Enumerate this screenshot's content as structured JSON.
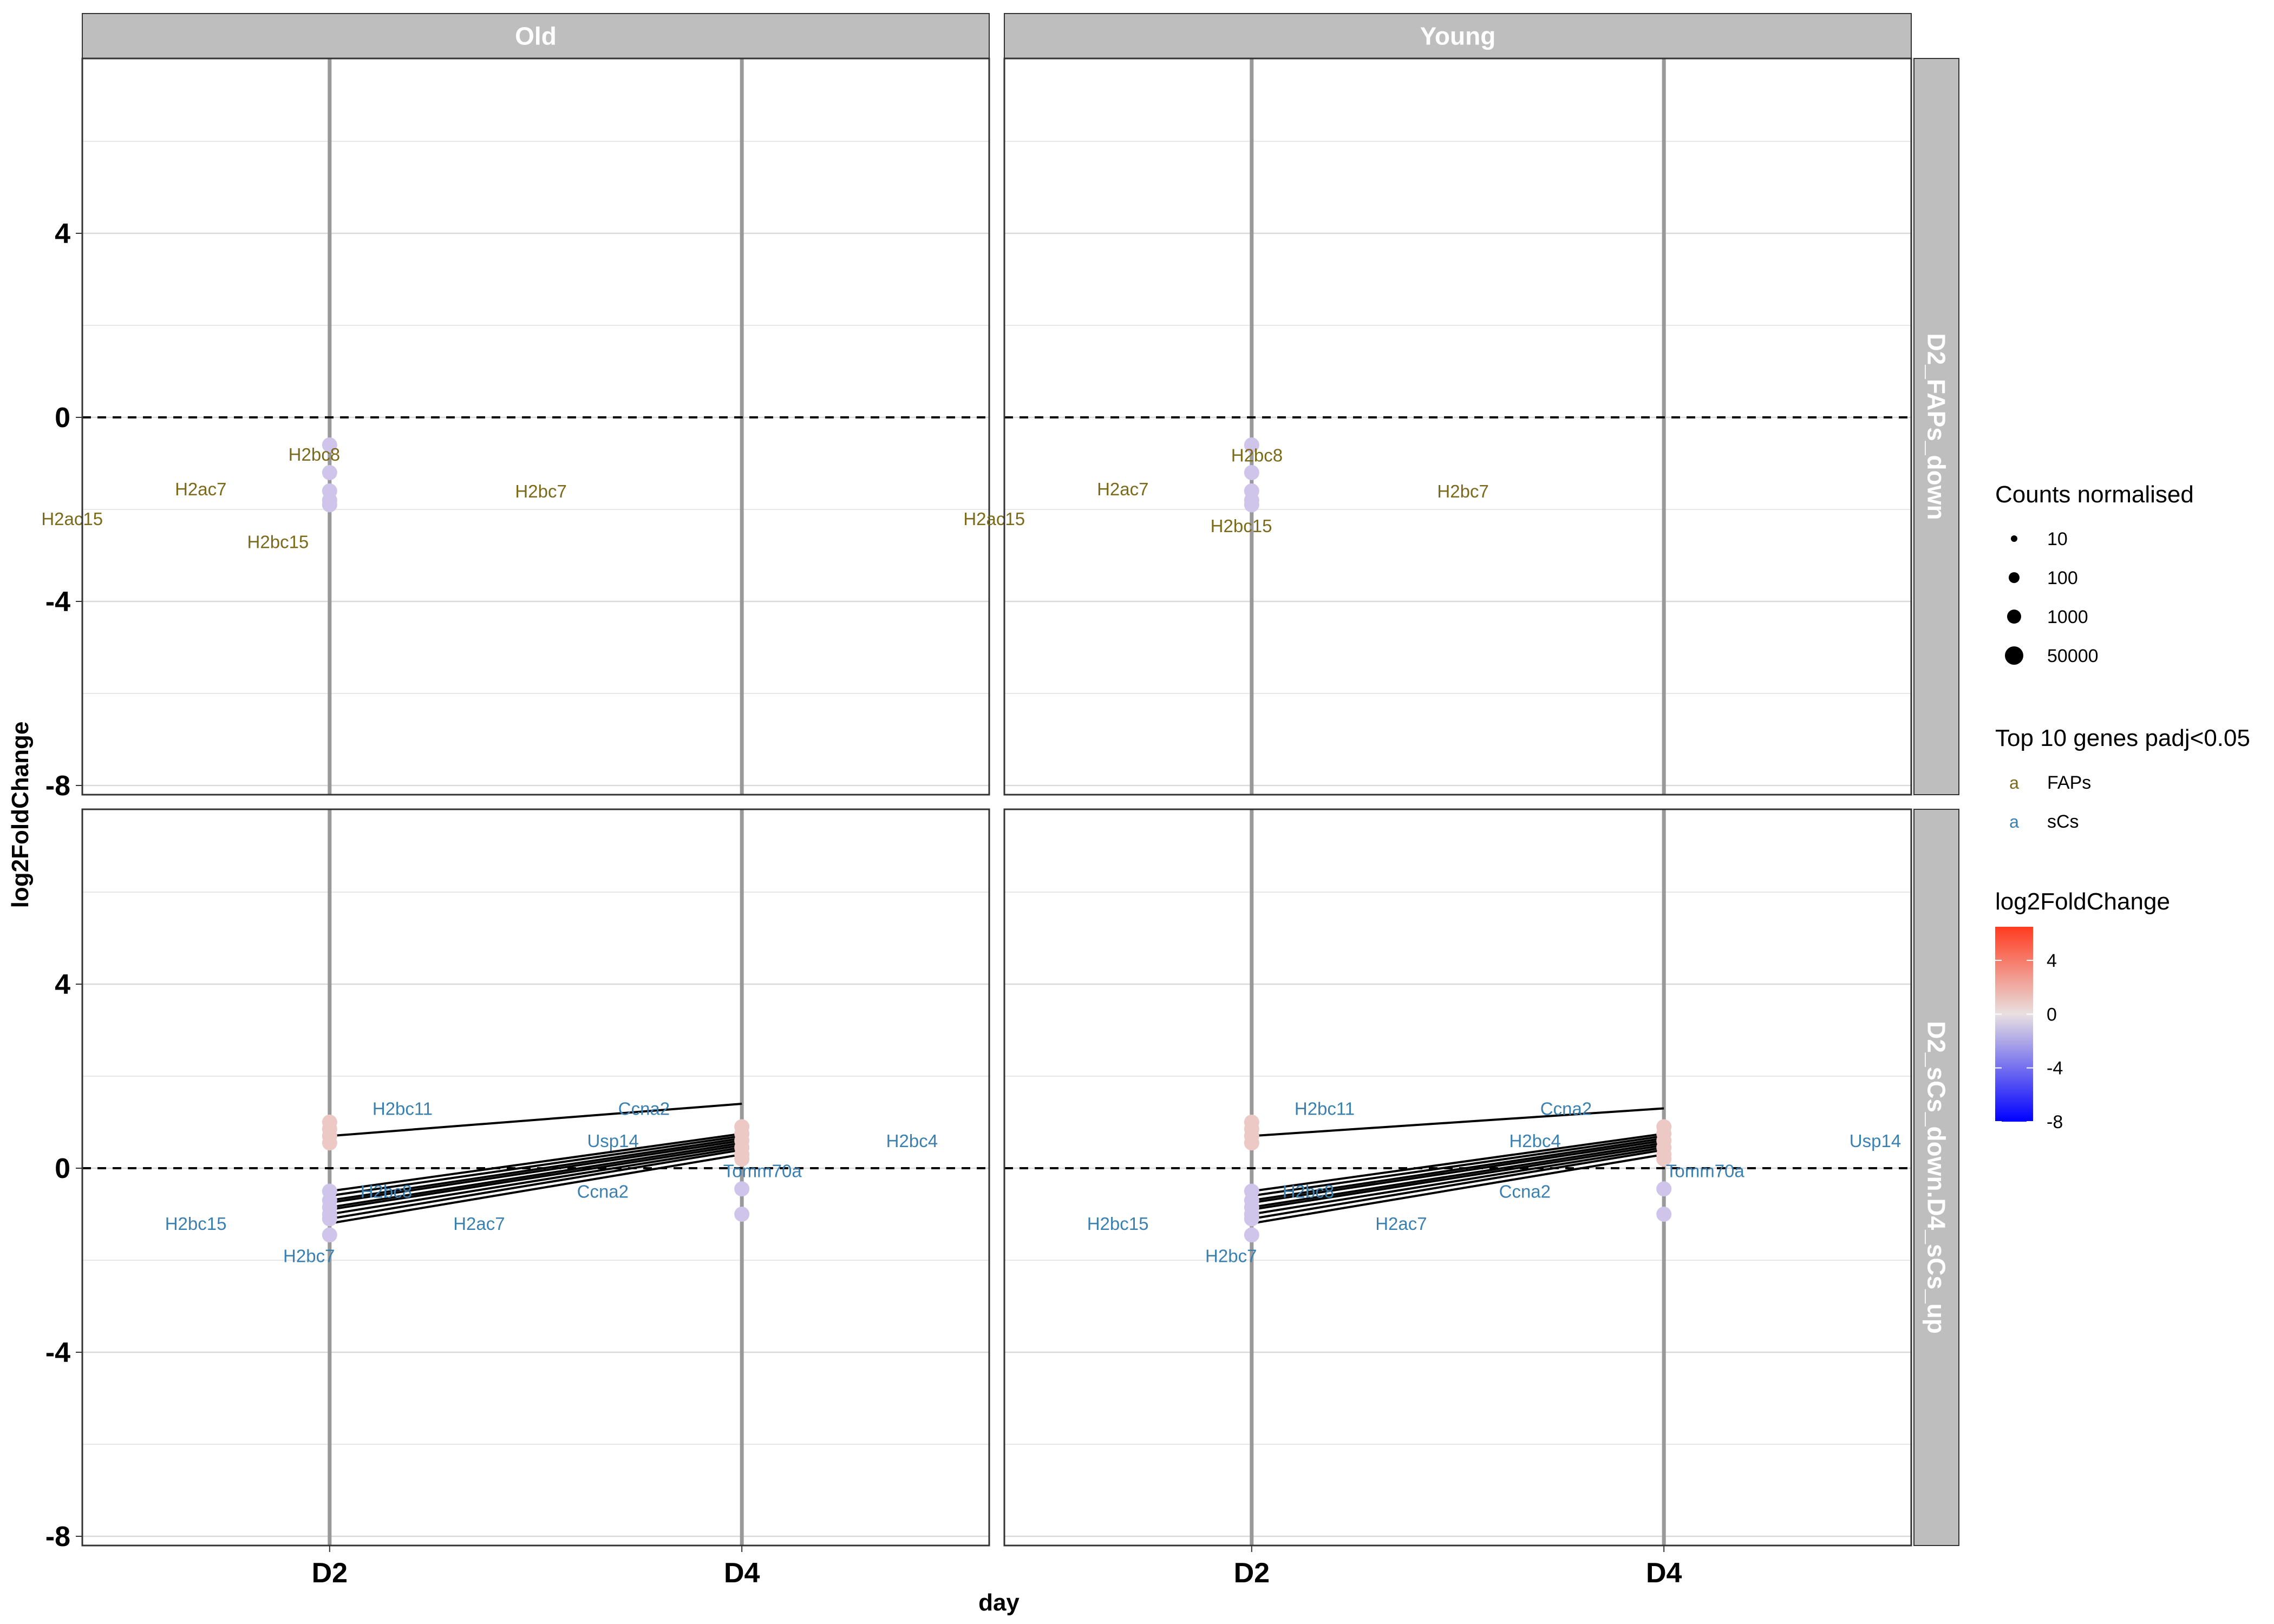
{
  "figure": {
    "xlabel": "day",
    "ylabel": "log2FoldChange",
    "col_strips": [
      "Old",
      "Young"
    ],
    "row_strips": [
      "D2_FAPs_down",
      "D2_sCs_down.D4_sCs_up"
    ]
  },
  "chart_data": {
    "type": "scatter",
    "x_categories": [
      "D2",
      "D4"
    ],
    "y_ticks": [
      4,
      0,
      -4,
      -8
    ],
    "ylim": [
      -8.2,
      7.8
    ],
    "grid": true,
    "zero_line": "dashed",
    "panels": [
      {
        "col": "Old",
        "row": "D2_FAPs_down",
        "points": [
          {
            "x": "D2",
            "y": -0.6
          },
          {
            "x": "D2",
            "y": -1.2
          },
          {
            "x": "D2",
            "y": -1.6
          },
          {
            "x": "D2",
            "y": -1.8
          },
          {
            "x": "D2",
            "y": -1.9
          }
        ],
        "lines": [],
        "labels": [
          {
            "text": "H2bc8",
            "x": "D2",
            "y": -0.8,
            "group": "FAPs",
            "anchor": "start",
            "dx": -0.1
          },
          {
            "text": "H2ac7",
            "x": "D2",
            "y": -1.55,
            "group": "FAPs",
            "anchor": "end",
            "dx": -0.25
          },
          {
            "text": "H2bc7",
            "x": "D2",
            "y": -1.6,
            "group": "FAPs",
            "anchor": "start",
            "dx": 0.45
          },
          {
            "text": "H2ac15",
            "x": "D2",
            "y": -2.2,
            "group": "FAPs",
            "anchor": "end",
            "dx": -0.55
          },
          {
            "text": "H2bc15",
            "x": "D2",
            "y": -2.7,
            "group": "FAPs",
            "anchor": "start",
            "dx": -0.2
          }
        ]
      },
      {
        "col": "Young",
        "row": "D2_FAPs_down",
        "points": [
          {
            "x": "D2",
            "y": -0.6
          },
          {
            "x": "D2",
            "y": -1.2
          },
          {
            "x": "D2",
            "y": -1.6
          },
          {
            "x": "D2",
            "y": -1.8
          },
          {
            "x": "D2",
            "y": -1.9
          }
        ],
        "lines": [],
        "labels": [
          {
            "text": "H2bc8",
            "x": "D2",
            "y": -0.82,
            "group": "FAPs",
            "anchor": "start",
            "dx": -0.05
          },
          {
            "text": "H2ac7",
            "x": "D2",
            "y": -1.55,
            "group": "FAPs",
            "anchor": "end",
            "dx": -0.25
          },
          {
            "text": "H2bc7",
            "x": "D2",
            "y": -1.6,
            "group": "FAPs",
            "anchor": "start",
            "dx": 0.45
          },
          {
            "text": "H2ac15",
            "x": "D2",
            "y": -2.2,
            "group": "FAPs",
            "anchor": "end",
            "dx": -0.55
          },
          {
            "text": "H2bc15",
            "x": "D2",
            "y": -2.35,
            "group": "FAPs",
            "anchor": "start",
            "dx": -0.1
          }
        ]
      },
      {
        "col": "Old",
        "row": "D2_sCs_down.D4_sCs_up",
        "points": [
          {
            "x": "D2",
            "y": 1.0
          },
          {
            "x": "D2",
            "y": 0.85
          },
          {
            "x": "D2",
            "y": 0.7
          },
          {
            "x": "D2",
            "y": 0.55
          },
          {
            "x": "D2",
            "y": -0.5
          },
          {
            "x": "D2",
            "y": -0.7
          },
          {
            "x": "D2",
            "y": -0.85
          },
          {
            "x": "D2",
            "y": -1.0
          },
          {
            "x": "D2",
            "y": -1.1
          },
          {
            "x": "D2",
            "y": -1.45
          },
          {
            "x": "D4",
            "y": 0.9
          },
          {
            "x": "D4",
            "y": 0.75
          },
          {
            "x": "D4",
            "y": 0.6
          },
          {
            "x": "D4",
            "y": 0.45
          },
          {
            "x": "D4",
            "y": 0.3
          },
          {
            "x": "D4",
            "y": 0.2
          },
          {
            "x": "D4",
            "y": -0.45
          },
          {
            "x": "D4",
            "y": -1.0
          }
        ],
        "lines": [
          {
            "y1": 0.7,
            "y2": 1.4
          },
          {
            "y1": -0.5,
            "y2": 0.75
          },
          {
            "y1": -0.6,
            "y2": 0.7
          },
          {
            "y1": -0.7,
            "y2": 0.65
          },
          {
            "y1": -0.75,
            "y2": 0.6
          },
          {
            "y1": -0.85,
            "y2": 0.55
          },
          {
            "y1": -0.9,
            "y2": 0.5
          },
          {
            "y1": -1.0,
            "y2": 0.45
          },
          {
            "y1": -1.1,
            "y2": 0.4
          },
          {
            "y1": -1.2,
            "y2": 0.3
          }
        ],
        "labels": [
          {
            "text": "H2bc11",
            "x": "D4",
            "y": 1.3,
            "group": "sCs",
            "anchor": "end",
            "dx": -0.75
          },
          {
            "text": "Ccna2",
            "x": "D4",
            "y": 1.3,
            "group": "sCs",
            "anchor": "start",
            "dx": -0.3
          },
          {
            "text": "Usp14",
            "x": "D4",
            "y": 0.6,
            "group": "sCs",
            "anchor": "end",
            "dx": -0.25
          },
          {
            "text": "H2bc4",
            "x": "D4",
            "y": 0.6,
            "group": "sCs",
            "anchor": "start",
            "dx": 0.35
          },
          {
            "text": "Tomm70a",
            "x": "D4",
            "y": -0.05,
            "group": "sCs",
            "anchor": "middle",
            "dx": 0.05
          },
          {
            "text": "H2bc8",
            "x": "D2",
            "y": -0.5,
            "group": "sCs",
            "anchor": "end",
            "dx": 0.2
          },
          {
            "text": "Ccna2",
            "x": "D2",
            "y": -0.5,
            "group": "sCs",
            "anchor": "start",
            "dx": 0.6
          },
          {
            "text": "H2bc15",
            "x": "D2",
            "y": -1.2,
            "group": "sCs",
            "anchor": "end",
            "dx": -0.25
          },
          {
            "text": "H2ac7",
            "x": "D2",
            "y": -1.2,
            "group": "sCs",
            "anchor": "start",
            "dx": 0.3
          },
          {
            "text": "H2bc7",
            "x": "D2",
            "y": -1.9,
            "group": "sCs",
            "anchor": "middle",
            "dx": -0.05
          }
        ]
      },
      {
        "col": "Young",
        "row": "D2_sCs_down.D4_sCs_up",
        "points": [
          {
            "x": "D2",
            "y": 1.0
          },
          {
            "x": "D2",
            "y": 0.85
          },
          {
            "x": "D2",
            "y": 0.7
          },
          {
            "x": "D2",
            "y": 0.55
          },
          {
            "x": "D2",
            "y": -0.5
          },
          {
            "x": "D2",
            "y": -0.7
          },
          {
            "x": "D2",
            "y": -0.85
          },
          {
            "x": "D2",
            "y": -1.0
          },
          {
            "x": "D2",
            "y": -1.1
          },
          {
            "x": "D2",
            "y": -1.45
          },
          {
            "x": "D4",
            "y": 0.9
          },
          {
            "x": "D4",
            "y": 0.75
          },
          {
            "x": "D4",
            "y": 0.6
          },
          {
            "x": "D4",
            "y": 0.45
          },
          {
            "x": "D4",
            "y": 0.3
          },
          {
            "x": "D4",
            "y": 0.2
          },
          {
            "x": "D4",
            "y": -0.45
          },
          {
            "x": "D4",
            "y": -1.0
          }
        ],
        "lines": [
          {
            "y1": 0.7,
            "y2": 1.3
          },
          {
            "y1": -0.5,
            "y2": 0.75
          },
          {
            "y1": -0.6,
            "y2": 0.7
          },
          {
            "y1": -0.7,
            "y2": 0.65
          },
          {
            "y1": -0.75,
            "y2": 0.6
          },
          {
            "y1": -0.85,
            "y2": 0.55
          },
          {
            "y1": -0.9,
            "y2": 0.5
          },
          {
            "y1": -1.0,
            "y2": 0.45
          },
          {
            "y1": -1.1,
            "y2": 0.4
          },
          {
            "y1": -1.2,
            "y2": 0.3
          }
        ],
        "labels": [
          {
            "text": "H2bc11",
            "x": "D4",
            "y": 1.3,
            "group": "sCs",
            "anchor": "end",
            "dx": -0.75
          },
          {
            "text": "Ccna2",
            "x": "D4",
            "y": 1.3,
            "group": "sCs",
            "anchor": "start",
            "dx": -0.3
          },
          {
            "text": "H2bc4",
            "x": "D4",
            "y": 0.6,
            "group": "sCs",
            "anchor": "end",
            "dx": -0.25
          },
          {
            "text": "Usp14",
            "x": "D4",
            "y": 0.6,
            "group": "sCs",
            "anchor": "start",
            "dx": 0.45
          },
          {
            "text": "Tomm70a",
            "x": "D4",
            "y": -0.05,
            "group": "sCs",
            "anchor": "middle",
            "dx": 0.1
          },
          {
            "text": "H2bc8",
            "x": "D2",
            "y": -0.5,
            "group": "sCs",
            "anchor": "end",
            "dx": 0.2
          },
          {
            "text": "Ccna2",
            "x": "D2",
            "y": -0.5,
            "group": "sCs",
            "anchor": "start",
            "dx": 0.6
          },
          {
            "text": "H2bc15",
            "x": "D2",
            "y": -1.2,
            "group": "sCs",
            "anchor": "end",
            "dx": -0.25
          },
          {
            "text": "H2ac7",
            "x": "D2",
            "y": -1.2,
            "group": "sCs",
            "anchor": "start",
            "dx": 0.3
          },
          {
            "text": "H2bc7",
            "x": "D2",
            "y": -1.9,
            "group": "sCs",
            "anchor": "middle",
            "dx": -0.05
          }
        ]
      }
    ]
  },
  "legend": {
    "size": {
      "title": "Counts normalised",
      "items": [
        {
          "label": "10"
        },
        {
          "label": "100"
        },
        {
          "label": "1000"
        },
        {
          "label": "50000"
        }
      ]
    },
    "groups": {
      "title": "Top 10 genes padj<0.05",
      "key_glyph": "a",
      "items": [
        {
          "label": "FAPs",
          "color": "#7a6a1a"
        },
        {
          "label": "sCs",
          "color": "#3a80b0"
        }
      ]
    },
    "colorbar": {
      "title": "log2FoldChange",
      "ticks": [
        4,
        0,
        -4,
        -8
      ],
      "range": [
        -8,
        6.5
      ],
      "colors": {
        "low": "#0000ff",
        "mid": "#e8e0e0",
        "high": "#ff3b1f"
      }
    }
  },
  "colors": {
    "strip_bg": "#bebebe",
    "grid": "#d9d9d9",
    "vline": "#999999",
    "point_neg": "#cfc4ea",
    "point_pos": "#ecc9c4"
  }
}
